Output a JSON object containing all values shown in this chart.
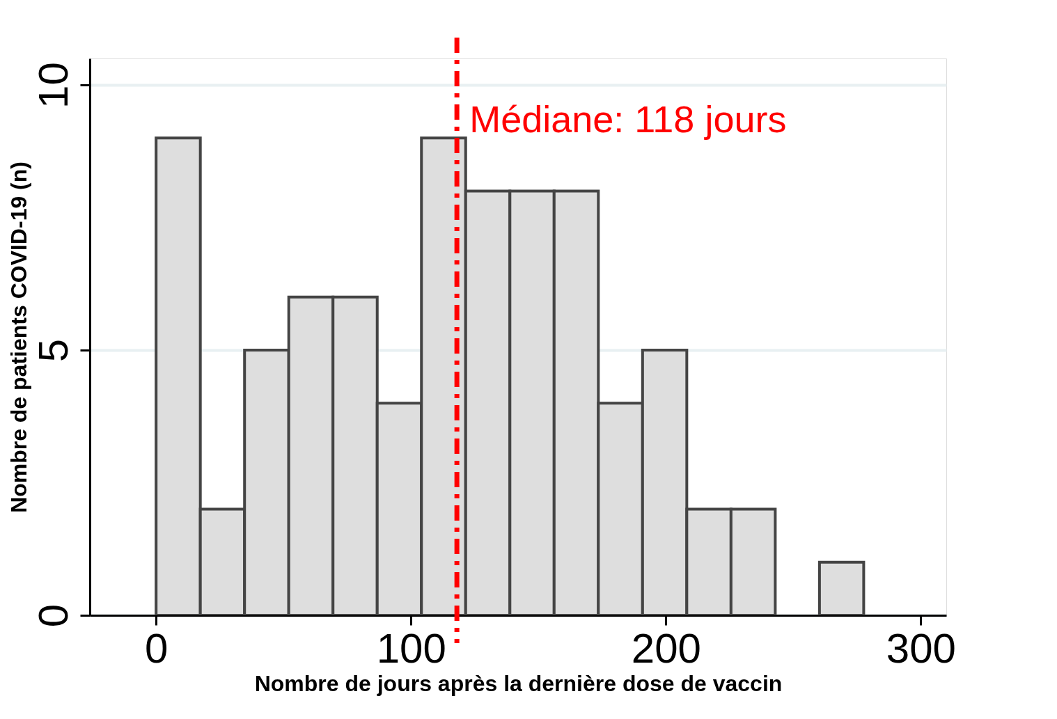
{
  "chart_data": {
    "type": "histogram",
    "xlabel": "Nombre de jours après la dernière dose de vaccin",
    "ylabel": "Nombre de patients COVID-19 (n)",
    "bins": [
      0,
      17.35,
      34.7,
      52.05,
      69.4,
      86.75,
      104.1,
      121.45,
      138.8,
      156.15,
      173.5,
      190.85,
      208.2,
      225.55,
      242.9,
      260.25,
      277.6
    ],
    "values": [
      9,
      2,
      5,
      6,
      6,
      4,
      9,
      8,
      8,
      8,
      4,
      5,
      2,
      2,
      0,
      1
    ],
    "color": "#dedede",
    "xlim": [
      -26,
      310
    ],
    "xticks": [
      0,
      100,
      200,
      300
    ],
    "ylim": [
      0,
      10.5
    ],
    "yticks": [
      0,
      5,
      10
    ],
    "grid": "y",
    "ref_lines": [
      {
        "axis": "x",
        "value": 118,
        "label": "Médiane: 118 jours",
        "color": "#ff0000",
        "line_style": "dashed"
      }
    ]
  }
}
